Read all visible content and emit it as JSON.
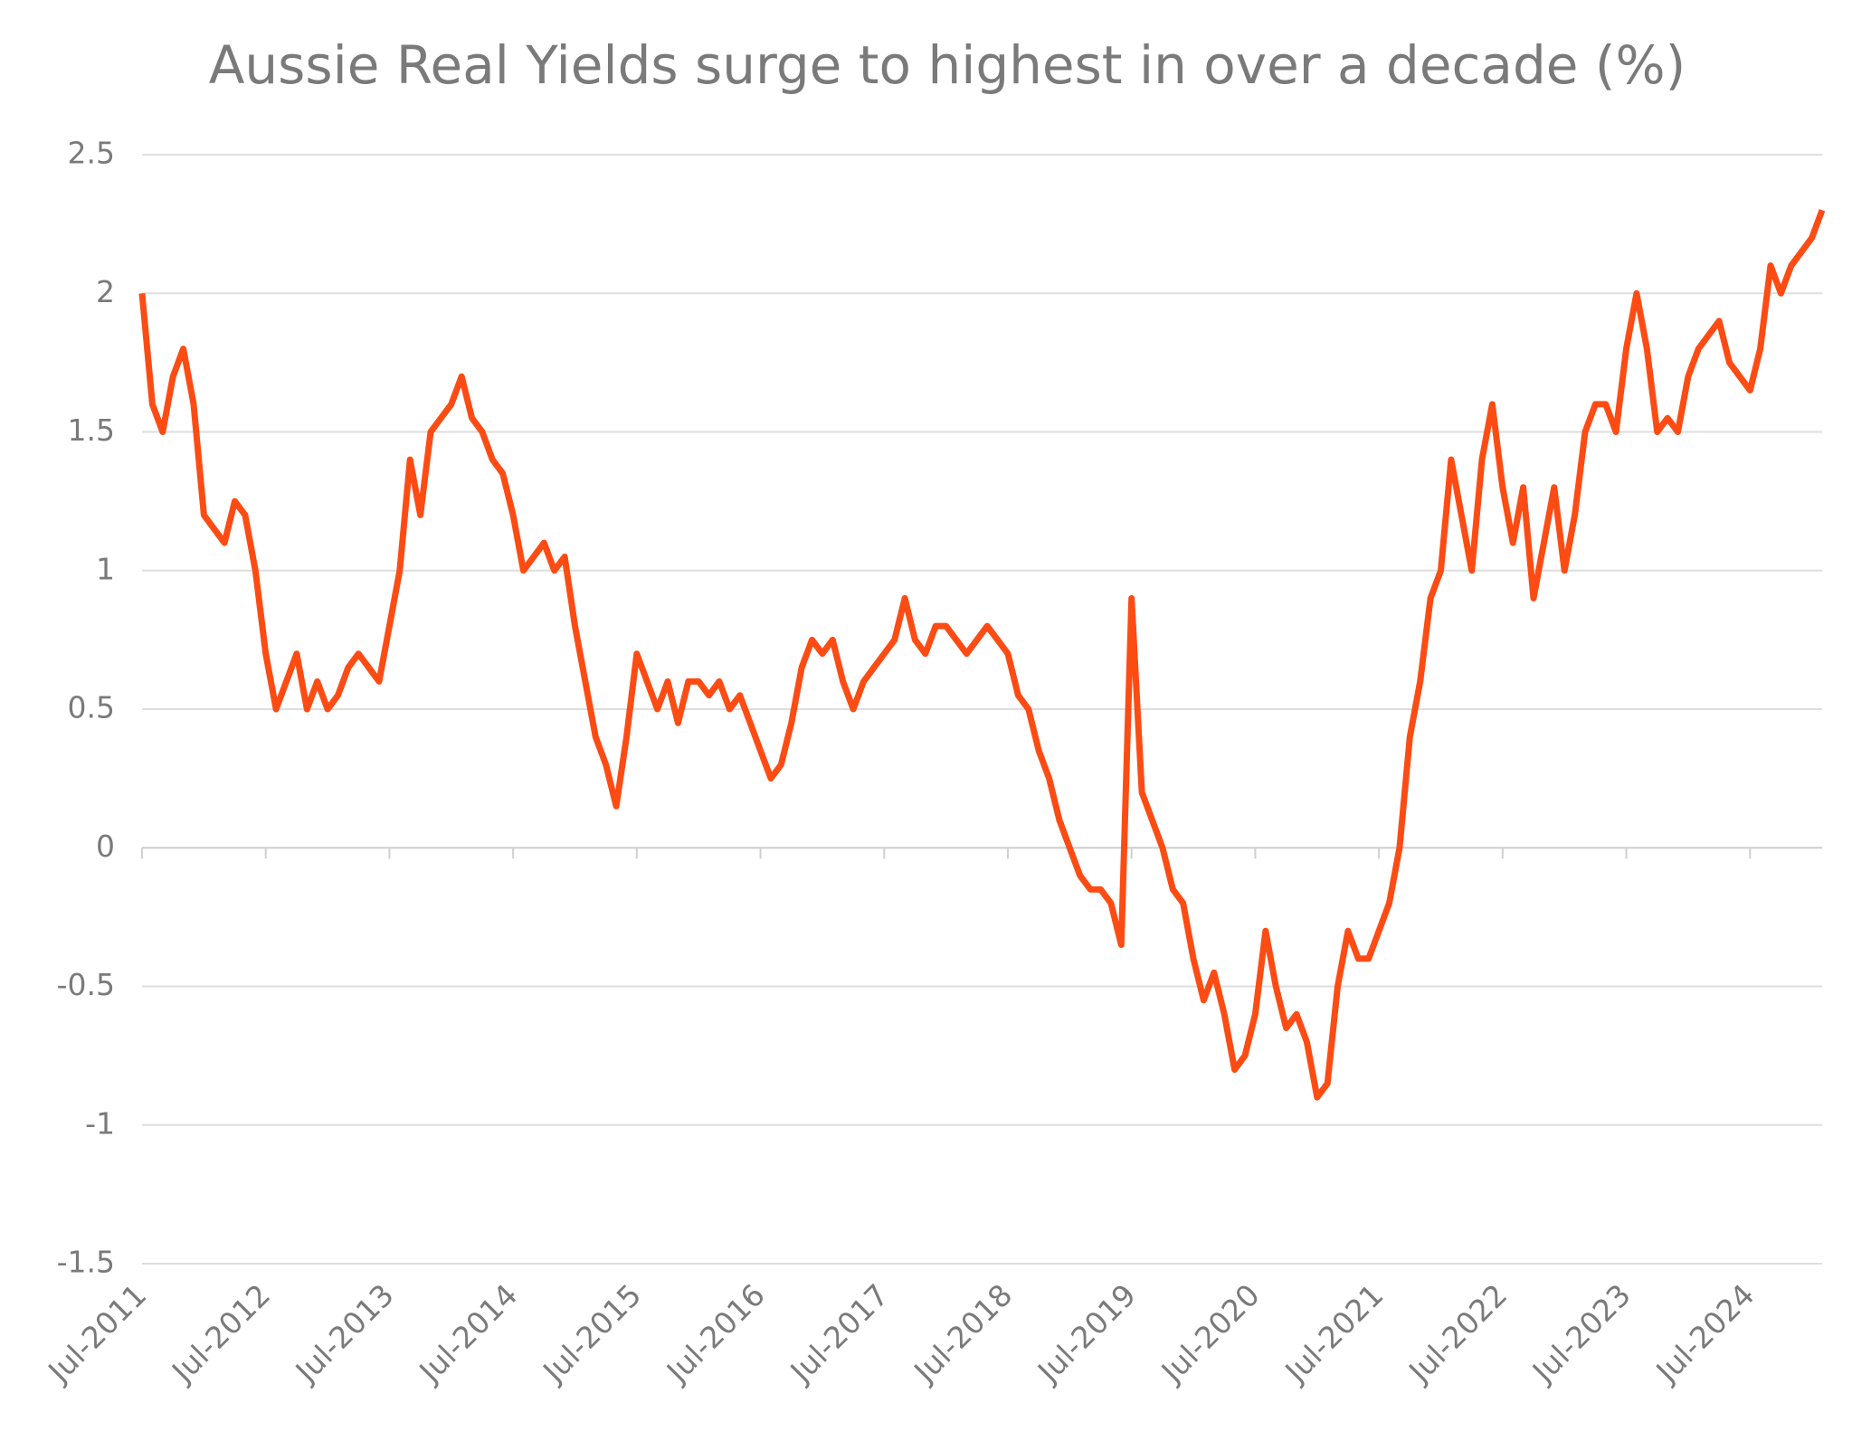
{
  "chart_data": {
    "type": "line",
    "title": "Aussie Real Yields surge to highest in over a decade (%)",
    "x": [
      "2011-07",
      "2011-08",
      "2011-09",
      "2011-10",
      "2011-11",
      "2011-12",
      "2012-01",
      "2012-02",
      "2012-03",
      "2012-04",
      "2012-05",
      "2012-06",
      "2012-07",
      "2012-08",
      "2012-09",
      "2012-10",
      "2012-11",
      "2012-12",
      "2013-01",
      "2013-02",
      "2013-03",
      "2013-04",
      "2013-05",
      "2013-06",
      "2013-07",
      "2013-08",
      "2013-09",
      "2013-10",
      "2013-11",
      "2013-12",
      "2014-01",
      "2014-02",
      "2014-03",
      "2014-04",
      "2014-05",
      "2014-06",
      "2014-07",
      "2014-08",
      "2014-09",
      "2014-10",
      "2014-11",
      "2014-12",
      "2015-01",
      "2015-02",
      "2015-03",
      "2015-04",
      "2015-05",
      "2015-06",
      "2015-07",
      "2015-08",
      "2015-09",
      "2015-10",
      "2015-11",
      "2015-12",
      "2016-01",
      "2016-02",
      "2016-03",
      "2016-04",
      "2016-05",
      "2016-06",
      "2016-07",
      "2016-08",
      "2016-09",
      "2016-10",
      "2016-11",
      "2016-12",
      "2017-01",
      "2017-02",
      "2017-03",
      "2017-04",
      "2017-05",
      "2017-06",
      "2017-07",
      "2017-08",
      "2017-09",
      "2017-10",
      "2017-11",
      "2017-12",
      "2018-01",
      "2018-02",
      "2018-03",
      "2018-04",
      "2018-05",
      "2018-06",
      "2018-07",
      "2018-08",
      "2018-09",
      "2018-10",
      "2018-11",
      "2018-12",
      "2019-01",
      "2019-02",
      "2019-03",
      "2019-04",
      "2019-05",
      "2019-06",
      "2019-07",
      "2019-08",
      "2019-09",
      "2019-10",
      "2019-11",
      "2019-12",
      "2020-01",
      "2020-02",
      "2020-03",
      "2020-04",
      "2020-05",
      "2020-06",
      "2020-07",
      "2020-08",
      "2020-09",
      "2020-10",
      "2020-11",
      "2020-12",
      "2021-01",
      "2021-02",
      "2021-03",
      "2021-04",
      "2021-05",
      "2021-06",
      "2021-07",
      "2021-08",
      "2021-09",
      "2021-10",
      "2021-11",
      "2021-12",
      "2022-01",
      "2022-02",
      "2022-03",
      "2022-04",
      "2022-05",
      "2022-06",
      "2022-07",
      "2022-08",
      "2022-09",
      "2022-10",
      "2022-11",
      "2022-12",
      "2023-01",
      "2023-02",
      "2023-03",
      "2023-04",
      "2023-05",
      "2023-06",
      "2023-07",
      "2023-08",
      "2023-09",
      "2023-10",
      "2023-11",
      "2023-12",
      "2024-01",
      "2024-02",
      "2024-03",
      "2024-04",
      "2024-05",
      "2024-06",
      "2024-07",
      "2024-08",
      "2024-09",
      "2024-10",
      "2024-11",
      "2024-12",
      "2025-01",
      "2025-02"
    ],
    "series": [
      {
        "name": "Aussie Real Yield",
        "color": "#fc4c14",
        "values": [
          2.0,
          1.6,
          1.5,
          1.7,
          1.8,
          1.6,
          1.2,
          1.15,
          1.1,
          1.25,
          1.2,
          1.0,
          0.7,
          0.5,
          0.6,
          0.7,
          0.5,
          0.6,
          0.5,
          0.55,
          0.65,
          0.7,
          0.65,
          0.6,
          0.8,
          1.0,
          1.4,
          1.2,
          1.5,
          1.55,
          1.6,
          1.7,
          1.55,
          1.5,
          1.4,
          1.35,
          1.2,
          1.0,
          1.05,
          1.1,
          1.0,
          1.05,
          0.8,
          0.6,
          0.4,
          0.3,
          0.15,
          0.4,
          0.7,
          0.6,
          0.5,
          0.6,
          0.45,
          0.6,
          0.6,
          0.55,
          0.6,
          0.5,
          0.55,
          0.45,
          0.35,
          0.25,
          0.3,
          0.45,
          0.65,
          0.75,
          0.7,
          0.75,
          0.6,
          0.5,
          0.6,
          0.65,
          0.7,
          0.75,
          0.9,
          0.75,
          0.7,
          0.8,
          0.8,
          0.75,
          0.7,
          0.75,
          0.8,
          0.75,
          0.7,
          0.55,
          0.5,
          0.35,
          0.25,
          0.1,
          0.0,
          -0.1,
          -0.15,
          -0.15,
          -0.2,
          -0.35,
          0.9,
          0.2,
          0.1,
          0.0,
          -0.15,
          -0.2,
          -0.4,
          -0.55,
          -0.45,
          -0.6,
          -0.8,
          -0.75,
          -0.6,
          -0.3,
          -0.5,
          -0.65,
          -0.6,
          -0.7,
          -0.9,
          -0.85,
          -0.5,
          -0.3,
          -0.4,
          -0.4,
          -0.3,
          -0.2,
          0.0,
          0.4,
          0.6,
          0.9,
          1.0,
          1.4,
          1.2,
          1.0,
          1.4,
          1.6,
          1.3,
          1.1,
          1.3,
          0.9,
          1.1,
          1.3,
          1.0,
          1.2,
          1.5,
          1.6,
          1.6,
          1.5,
          1.8,
          2.0,
          1.8,
          1.5,
          1.55,
          1.5,
          1.7,
          1.8,
          1.85,
          1.9,
          1.75,
          1.7,
          1.65,
          1.8,
          2.1,
          2.0,
          2.1,
          2.15,
          2.2,
          2.3
        ]
      }
    ],
    "xlim": [
      "2011-07",
      "2025-02"
    ],
    "xticks": [
      {
        "value": "2011-07",
        "label": "Jul-2011"
      },
      {
        "value": "2012-07",
        "label": "Jul-2012"
      },
      {
        "value": "2013-07",
        "label": "Jul-2013"
      },
      {
        "value": "2014-07",
        "label": "Jul-2014"
      },
      {
        "value": "2015-07",
        "label": "Jul-2015"
      },
      {
        "value": "2016-07",
        "label": "Jul-2016"
      },
      {
        "value": "2017-07",
        "label": "Jul-2017"
      },
      {
        "value": "2018-07",
        "label": "Jul-2018"
      },
      {
        "value": "2019-07",
        "label": "Jul-2019"
      },
      {
        "value": "2020-07",
        "label": "Jul-2020"
      },
      {
        "value": "2021-07",
        "label": "Jul-2021"
      },
      {
        "value": "2022-07",
        "label": "Jul-2022"
      },
      {
        "value": "2023-07",
        "label": "Jul-2023"
      },
      {
        "value": "2024-07",
        "label": "Jul-2024"
      }
    ],
    "ylim": [
      -1.5,
      2.5
    ],
    "yticks": [
      -1.5,
      -1,
      -0.5,
      0,
      0.5,
      1,
      1.5,
      2,
      2.5
    ],
    "grid": true
  }
}
